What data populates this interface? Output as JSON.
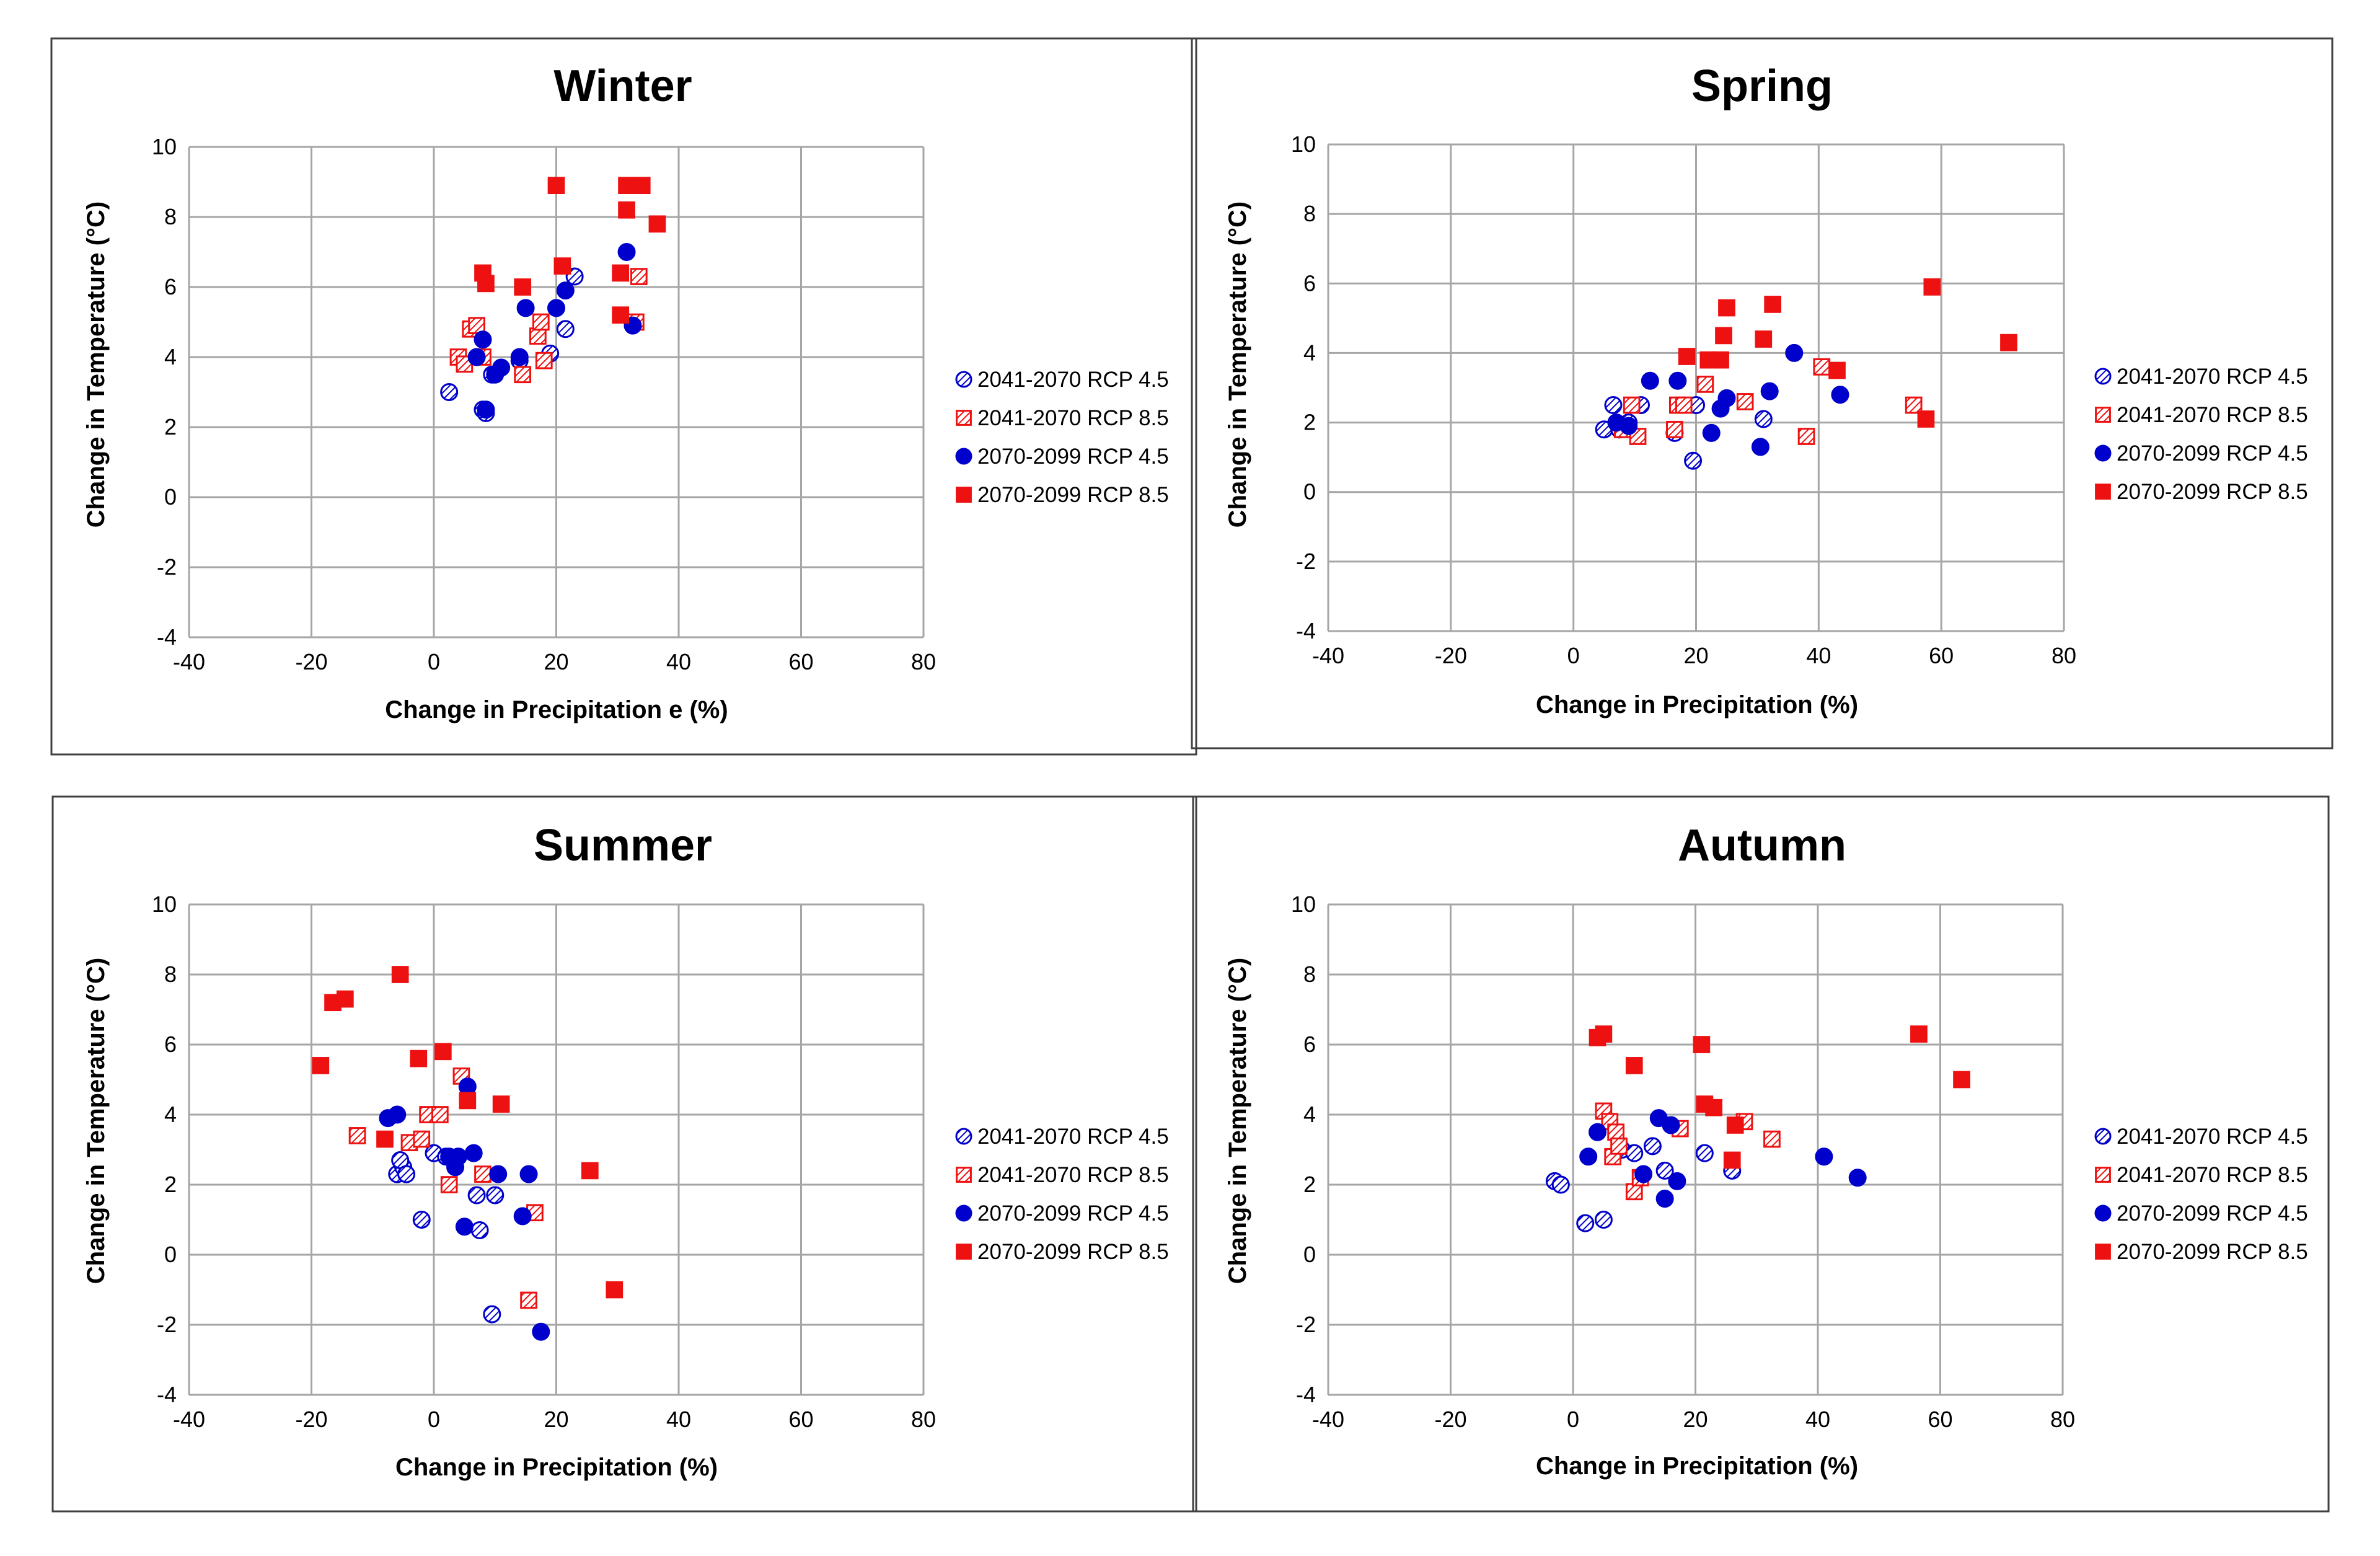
{
  "colors": {
    "rcp45": "#0000cc",
    "rcp85": "#ee1111",
    "grid": "#a6a6a6",
    "frame": "#404040"
  },
  "legend": [
    "2041-2070 RCP 4.5",
    "2041-2070 RCP 8.5",
    "2070-2099 RCP 4.5",
    "2070-2099 RCP 8.5"
  ],
  "chart_data": [
    {
      "type": "scatter",
      "title": "Winter",
      "xlabel": "Change in Precipitation e (%)",
      "ylabel": "Change in Temperature  (°C)",
      "xlim": [
        -40,
        80
      ],
      "ylim": [
        -4,
        10
      ],
      "xticks": [
        "-40",
        "-20",
        "0",
        "20",
        "40",
        "60",
        "80"
      ],
      "yticks": [
        "-4",
        "-2",
        "0",
        "2",
        "4",
        "6",
        "8",
        "10"
      ],
      "series": [
        {
          "name": "2041-2070 RCP 4.5",
          "x": [
            2.5,
            8,
            8.5,
            9.5,
            14,
            19,
            21.5,
            23
          ],
          "y": [
            3.0,
            2.5,
            2.4,
            3.5,
            3.9,
            4.1,
            4.8,
            6.3
          ]
        },
        {
          "name": "2041-2070 RCP 8.5",
          "x": [
            4,
            5,
            6,
            7,
            8,
            14.5,
            17,
            17.5,
            18,
            33,
            33.5
          ],
          "y": [
            4.0,
            3.8,
            4.8,
            4.9,
            4.0,
            3.5,
            4.6,
            5.0,
            3.9,
            5.0,
            6.3
          ]
        },
        {
          "name": "2070-2099 RCP 4.5",
          "x": [
            7,
            8,
            8.5,
            10,
            11,
            14,
            15,
            20,
            21.5,
            31.5,
            32.5
          ],
          "y": [
            4.0,
            4.5,
            2.5,
            3.5,
            3.7,
            4.0,
            5.4,
            5.4,
            5.9,
            7.0,
            4.9
          ]
        },
        {
          "name": "2070-2099 RCP 8.5",
          "x": [
            8,
            8.5,
            14.5,
            20,
            21,
            30.5,
            30.5,
            31.5,
            31.5,
            34,
            36.5
          ],
          "y": [
            6.4,
            6.1,
            6.0,
            8.9,
            6.6,
            6.4,
            5.2,
            8.9,
            8.2,
            8.9,
            7.8
          ]
        }
      ]
    },
    {
      "type": "scatter",
      "title": "Spring",
      "xlabel": "Change in Precipitation  (%)",
      "ylabel": "Change in Temperature  (°C)",
      "xlim": [
        -40,
        80
      ],
      "ylim": [
        -4,
        10
      ],
      "xticks": [
        "-40",
        "-20",
        "0",
        "20",
        "40",
        "60",
        "80"
      ],
      "yticks": [
        "-4",
        "-2",
        "0",
        "2",
        "4",
        "6",
        "8",
        "10"
      ],
      "series": [
        {
          "name": "2041-2070 RCP 4.5",
          "x": [
            5,
            6.5,
            7.5,
            9,
            11,
            16.5,
            19.5,
            20,
            31
          ],
          "y": [
            1.8,
            2.5,
            1.8,
            2.0,
            2.5,
            1.7,
            0.9,
            2.5,
            2.1
          ]
        },
        {
          "name": "2041-2070 RCP 8.5",
          "x": [
            8,
            9.5,
            10.5,
            16.5,
            17,
            18,
            21.5,
            28,
            38,
            40.5,
            55.5
          ],
          "y": [
            1.8,
            2.5,
            1.6,
            1.8,
            2.5,
            2.5,
            3.1,
            2.6,
            1.6,
            3.6,
            2.5
          ]
        },
        {
          "name": "2070-2099 RCP 4.5",
          "x": [
            7,
            9,
            12.5,
            17,
            22.5,
            24,
            25,
            30.5,
            32,
            36,
            43.5
          ],
          "y": [
            2.0,
            1.9,
            3.2,
            3.2,
            1.7,
            2.4,
            2.7,
            1.3,
            2.9,
            4.0,
            2.8
          ]
        },
        {
          "name": "2070-2099 RCP 8.5",
          "x": [
            18.5,
            22,
            24,
            24.5,
            25,
            31,
            32.5,
            43,
            57.5,
            58.5,
            71
          ],
          "y": [
            3.9,
            3.8,
            3.8,
            4.5,
            5.3,
            4.4,
            5.4,
            3.5,
            2.1,
            5.9,
            4.3
          ]
        }
      ]
    },
    {
      "type": "scatter",
      "title": "Summer",
      "xlabel": "Change in Precipitation  (%)",
      "ylabel": "Change in Temperature  (°C)",
      "xlim": [
        -40,
        80
      ],
      "ylim": [
        -4,
        10
      ],
      "xticks": [
        "-40",
        "-20",
        "0",
        "20",
        "40",
        "60",
        "80"
      ],
      "yticks": [
        "-4",
        "-2",
        "0",
        "2",
        "4",
        "6",
        "8",
        "10"
      ],
      "series": [
        {
          "name": "2041-2070 RCP 4.5",
          "x": [
            -6,
            -5,
            -5.5,
            -4.5,
            -2,
            0,
            2,
            7,
            7.5,
            9.5,
            10
          ],
          "y": [
            2.3,
            2.5,
            2.7,
            2.3,
            1.0,
            2.9,
            2.8,
            1.7,
            0.7,
            -1.7,
            1.7
          ]
        },
        {
          "name": "2041-2070 RCP 8.5",
          "x": [
            -12.5,
            -4,
            -2,
            -1,
            1,
            2.5,
            4.5,
            8,
            15.5,
            16.5
          ],
          "y": [
            3.4,
            3.2,
            3.3,
            4.0,
            4.0,
            2.0,
            5.1,
            2.3,
            -1.3,
            1.2
          ]
        },
        {
          "name": "2070-2099 RCP 4.5",
          "x": [
            -7.5,
            -6,
            2.5,
            3.5,
            4,
            5,
            5.5,
            6.5,
            10.5,
            14.5,
            15.5,
            17.5
          ],
          "y": [
            3.9,
            4.0,
            2.8,
            2.5,
            2.8,
            0.8,
            4.8,
            2.9,
            2.3,
            1.1,
            2.3,
            -2.2
          ]
        },
        {
          "name": "2070-2099 RCP 8.5",
          "x": [
            -18.5,
            -16.5,
            -14.5,
            -8,
            -5.5,
            -2.5,
            1.5,
            5.5,
            11,
            25.5,
            29.5
          ],
          "y": [
            5.4,
            7.2,
            7.3,
            3.3,
            8.0,
            5.6,
            5.8,
            4.4,
            4.3,
            2.4,
            -1.0
          ]
        }
      ]
    },
    {
      "type": "scatter",
      "title": "Autumn",
      "xlabel": "Change in Precipitation  (%)",
      "ylabel": "Change in Temperature  (°C)",
      "xlim": [
        -40,
        80
      ],
      "ylim": [
        -4,
        10
      ],
      "xticks": [
        "-40",
        "-20",
        "0",
        "20",
        "40",
        "60",
        "80"
      ],
      "yticks": [
        "-4",
        "-2",
        "0",
        "2",
        "4",
        "6",
        "8",
        "10"
      ],
      "series": [
        {
          "name": "2041-2070 RCP 4.5",
          "x": [
            -3,
            -2,
            2,
            5,
            8,
            10,
            13,
            15,
            21.5,
            26
          ],
          "y": [
            2.1,
            2.0,
            0.9,
            1.0,
            3.0,
            2.9,
            3.1,
            2.4,
            2.9,
            2.4
          ]
        },
        {
          "name": "2041-2070 RCP 8.5",
          "x": [
            5,
            6,
            6.5,
            7,
            7.5,
            10,
            11,
            17.5,
            28,
            32.5
          ],
          "y": [
            4.1,
            3.8,
            2.8,
            3.5,
            3.1,
            1.8,
            2.2,
            3.6,
            3.8,
            3.3
          ]
        },
        {
          "name": "2070-2099 RCP 4.5",
          "x": [
            2.5,
            4,
            11.5,
            14,
            15,
            16,
            17,
            41,
            46.5
          ],
          "y": [
            2.8,
            3.5,
            2.3,
            3.9,
            1.6,
            3.7,
            2.1,
            2.8,
            2.2
          ]
        },
        {
          "name": "2070-2099 RCP 8.5",
          "x": [
            4,
            5,
            10,
            21,
            21.5,
            23,
            26,
            26.5,
            56.5,
            63.5
          ],
          "y": [
            6.2,
            6.3,
            5.4,
            6.0,
            4.3,
            4.2,
            2.7,
            3.7,
            6.3,
            5.0
          ]
        }
      ]
    }
  ]
}
